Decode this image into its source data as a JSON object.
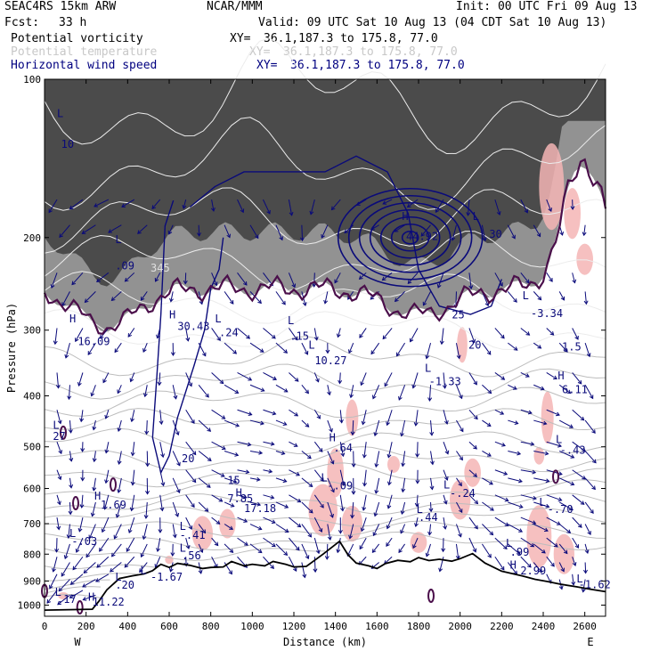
{
  "header": {
    "model": "SEAC4RS 15km ARW",
    "center": "NCAR/MMM",
    "init": "Init: 00 UTC Fri 09 Aug 13",
    "fcst_label": "Fcst:",
    "fcst_value": "33 h",
    "valid": "Valid: 09 UTC Sat 10 Aug 13 (04 CDT Sat 10 Aug 13)",
    "fields": [
      {
        "name": "Potential vorticity",
        "xy_label": "XY=",
        "xy_value": "36.1,187.3 to 175.8, 77.0",
        "color": "#000000"
      },
      {
        "name": "Potential temperature",
        "xy_label": "XY=",
        "xy_value": "36.1,187.3 to 175.8, 77.0",
        "color": "#c8c8c8"
      },
      {
        "name": "Horizontal wind speed",
        "xy_label": "XY=",
        "xy_value": "36.1,187.3 to 175.8, 77.0",
        "color": "#000080"
      }
    ]
  },
  "chart_data": {
    "type": "cross-section",
    "xlabel": "Distance (km)",
    "ylabel": "Pressure (hPa)",
    "xlim": [
      0,
      2700
    ],
    "ylim": [
      100,
      1050
    ],
    "y_scale": "log",
    "x_ticks": [
      0,
      200,
      400,
      600,
      800,
      1000,
      1200,
      1400,
      1600,
      1800,
      2000,
      2200,
      2400,
      2600
    ],
    "y_ticks": [
      100,
      200,
      300,
      400,
      500,
      600,
      700,
      800,
      900,
      1000
    ],
    "x_end_labels": {
      "left": "W",
      "right": "E"
    },
    "colors": {
      "pv_shade": "#555555",
      "pv_contour": "#4b0f4b",
      "theta": "#bdbdbd",
      "wind": "#0a0a7a",
      "shade_pink": "#f5b5b5",
      "terrain": "#000000"
    },
    "terrain_surface_hpa": [
      [
        0,
        1022
      ],
      [
        120,
        1020
      ],
      [
        230,
        1018
      ],
      [
        260,
        985
      ],
      [
        300,
        935
      ],
      [
        340,
        905
      ],
      [
        360,
        890
      ],
      [
        420,
        880
      ],
      [
        480,
        872
      ],
      [
        520,
        860
      ],
      [
        560,
        836
      ],
      [
        600,
        848
      ],
      [
        640,
        833
      ],
      [
        700,
        840
      ],
      [
        760,
        852
      ],
      [
        800,
        848
      ],
      [
        860,
        846
      ],
      [
        900,
        826
      ],
      [
        960,
        842
      ],
      [
        1000,
        836
      ],
      [
        1060,
        842
      ],
      [
        1100,
        826
      ],
      [
        1160,
        836
      ],
      [
        1200,
        846
      ],
      [
        1260,
        844
      ],
      [
        1300,
        822
      ],
      [
        1340,
        800
      ],
      [
        1380,
        778
      ],
      [
        1420,
        756
      ],
      [
        1460,
        802
      ],
      [
        1500,
        832
      ],
      [
        1560,
        842
      ],
      [
        1600,
        852
      ],
      [
        1640,
        834
      ],
      [
        1700,
        822
      ],
      [
        1760,
        827
      ],
      [
        1800,
        812
      ],
      [
        1850,
        823
      ],
      [
        1900,
        818
      ],
      [
        1960,
        825
      ],
      [
        2000,
        816
      ],
      [
        2060,
        798
      ],
      [
        2120,
        832
      ],
      [
        2200,
        862
      ],
      [
        2300,
        880
      ],
      [
        2360,
        893
      ],
      [
        2420,
        902
      ],
      [
        2480,
        912
      ],
      [
        2560,
        923
      ],
      [
        2620,
        932
      ],
      [
        2700,
        943
      ]
    ],
    "wind_speed_contours": [
      {
        "label": "25",
        "x": 1960,
        "p": 285
      },
      {
        "label": "20",
        "x": 2040,
        "p": 325
      },
      {
        "label": "20",
        "x": 660,
        "p": 535
      },
      {
        "label": "30",
        "x": 2140,
        "p": 200
      },
      {
        "label": "15",
        "x": 880,
        "p": 588
      }
    ],
    "theta_contours": [
      {
        "label": "345",
        "x": 510,
        "p": 232
      }
    ],
    "annotations": [
      {
        "text": "L",
        "x": 60,
        "p": 118
      },
      {
        "text": "10",
        "x": 80,
        "p": 135
      },
      {
        "text": "L",
        "x": 340,
        "p": 205
      },
      {
        "text": ".09",
        "x": 340,
        "p": 230
      },
      {
        "text": "H",
        "x": 120,
        "p": 290
      },
      {
        "text": "16.09",
        "x": 160,
        "p": 320
      },
      {
        "text": "H",
        "x": 600,
        "p": 285
      },
      {
        "text": "30.43",
        "x": 640,
        "p": 300
      },
      {
        "text": "L",
        "x": 820,
        "p": 290
      },
      {
        "text": ".24",
        "x": 840,
        "p": 308
      },
      {
        "text": "L",
        "x": 1170,
        "p": 292
      },
      {
        "text": ".15",
        "x": 1180,
        "p": 313
      },
      {
        "text": "L",
        "x": 1270,
        "p": 325
      },
      {
        "text": "10.27",
        "x": 1300,
        "p": 348
      },
      {
        "text": "H",
        "x": 1720,
        "p": 185
      },
      {
        "text": "44.92",
        "x": 1740,
        "p": 202
      },
      {
        "text": "L",
        "x": 2060,
        "p": 185
      },
      {
        "text": "L",
        "x": 2300,
        "p": 262
      },
      {
        "text": "-3.34",
        "x": 2340,
        "p": 283
      },
      {
        "text": "L",
        "x": 1830,
        "p": 360
      },
      {
        "text": "-1.33",
        "x": 1850,
        "p": 382
      },
      {
        "text": "1.5",
        "x": 2490,
        "p": 328
      },
      {
        "text": "H",
        "x": 2470,
        "p": 372
      },
      {
        "text": "6.11",
        "x": 2490,
        "p": 395
      },
      {
        "text": "L",
        "x": 40,
        "p": 462
      },
      {
        "text": "27",
        "x": 40,
        "p": 485
      },
      {
        "text": "H",
        "x": 1370,
        "p": 488
      },
      {
        "text": ".64",
        "x": 1390,
        "p": 510
      },
      {
        "text": "L",
        "x": 2460,
        "p": 492
      },
      {
        "text": "-.43",
        "x": 2480,
        "p": 515
      },
      {
        "text": "L",
        "x": 1330,
        "p": 582
      },
      {
        "text": "-.09",
        "x": 1360,
        "p": 602
      },
      {
        "text": "L",
        "x": 1920,
        "p": 600
      },
      {
        "text": "-.24",
        "x": 1950,
        "p": 623
      },
      {
        "text": "H",
        "x": 240,
        "p": 630
      },
      {
        "text": "1.69",
        "x": 270,
        "p": 655
      },
      {
        "text": "H",
        "x": 920,
        "p": 622
      },
      {
        "text": "7.85",
        "x": 880,
        "p": 638
      },
      {
        "text": "17.18",
        "x": 960,
        "p": 665
      },
      {
        "text": "L",
        "x": 1790,
        "p": 668
      },
      {
        "text": ".44",
        "x": 1800,
        "p": 692
      },
      {
        "text": "L",
        "x": 2380,
        "p": 648
      },
      {
        "text": "-.70",
        "x": 2420,
        "p": 668
      },
      {
        "text": "L",
        "x": 650,
        "p": 720
      },
      {
        "text": "-.41",
        "x": 650,
        "p": 748
      },
      {
        "text": "L",
        "x": 120,
        "p": 742
      },
      {
        "text": "-.03",
        "x": 130,
        "p": 768
      },
      {
        "text": "L",
        "x": 650,
        "p": 792
      },
      {
        "text": ".56",
        "x": 660,
        "p": 818
      },
      {
        "text": "L",
        "x": 2220,
        "p": 775
      },
      {
        "text": ".99",
        "x": 2240,
        "p": 805
      },
      {
        "text": "H",
        "x": 2240,
        "p": 852
      },
      {
        "text": "2.99",
        "x": 2290,
        "p": 875
      },
      {
        "text": "L",
        "x": 460,
        "p": 872
      },
      {
        "text": "-1.67",
        "x": 510,
        "p": 898
      },
      {
        "text": "L",
        "x": 340,
        "p": 898
      },
      {
        "text": ".20",
        "x": 340,
        "p": 930
      },
      {
        "text": "L",
        "x": 2560,
        "p": 905
      },
      {
        "text": "-1.62",
        "x": 2570,
        "p": 928
      },
      {
        "text": "L",
        "x": 50,
        "p": 960
      },
      {
        "text": ".17",
        "x": 60,
        "p": 990
      },
      {
        "text": "H",
        "x": 210,
        "p": 980
      },
      {
        "text": "11.22",
        "x": 230,
        "p": 1002
      }
    ]
  }
}
